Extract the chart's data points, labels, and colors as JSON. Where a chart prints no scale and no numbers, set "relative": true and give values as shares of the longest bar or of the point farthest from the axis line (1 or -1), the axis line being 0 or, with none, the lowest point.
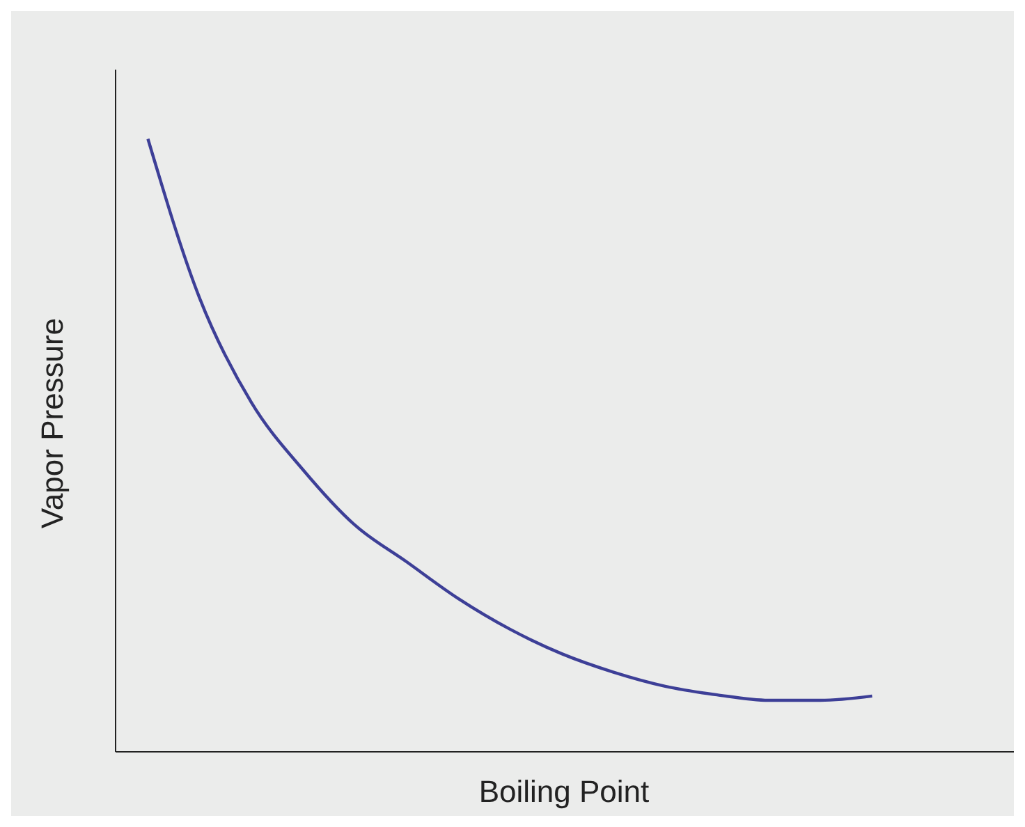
{
  "chart_data": {
    "type": "line",
    "xlabel": "Boiling Point",
    "ylabel": "Vapor Pressure",
    "relative": true,
    "categories": [
      null,
      null,
      null,
      null,
      null,
      null,
      null,
      null,
      null,
      null,
      null,
      null,
      null,
      null,
      null
    ],
    "series": [
      {
        "color": "#3d3f97",
        "values": [
          1,
          0.74,
          0.57,
          0.46,
          0.37,
          0.31,
          0.25,
          0.2,
          0.16,
          0.13,
          0.107,
          0.093,
          0.084,
          0.084,
          0.091
        ]
      }
    ],
    "grid": false,
    "legend": false,
    "marker": "none",
    "line_style": "solid"
  }
}
